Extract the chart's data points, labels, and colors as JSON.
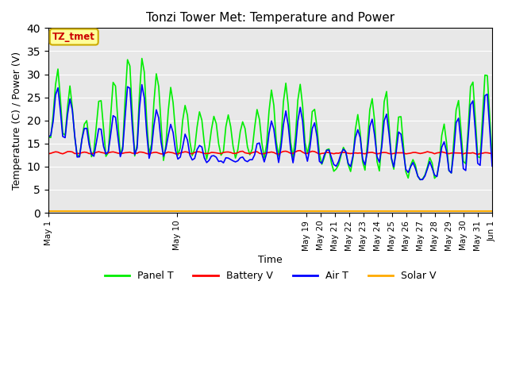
{
  "title": "Tonzi Tower Met: Temperature and Power",
  "xlabel": "Time",
  "ylabel": "Temperature (C) / Power (V)",
  "ylim": [
    0,
    40
  ],
  "yticks": [
    0,
    5,
    10,
    15,
    20,
    25,
    30,
    35,
    40
  ],
  "plot_bg_color": "#e8e8e8",
  "fig_bg_color": "#ffffff",
  "legend_labels": [
    "Panel T",
    "Battery V",
    "Air T",
    "Solar V"
  ],
  "legend_colors": [
    "#00ee00",
    "#ff0000",
    "#0000ff",
    "#ffaa00"
  ],
  "annotation_text": "TZ_tmet",
  "annotation_color": "#cc0000",
  "annotation_bg": "#ffff99",
  "annotation_edge": "#ccaa00",
  "x_tick_positions": [
    1,
    10,
    19,
    20,
    21,
    22,
    23,
    24,
    25,
    26,
    27,
    28,
    29,
    30,
    31,
    32
  ],
  "x_tick_labels": [
    "May 1",
    "May 10",
    "May 19",
    "May 20",
    "May 21",
    "May 22",
    "May 23",
    "May 24",
    "May 25",
    "May 26",
    "May 27",
    "May 28",
    "May 29",
    "May 30",
    "May 31",
    "Jun 1"
  ],
  "xlim": [
    1,
    32
  ],
  "n_days": 31,
  "seed": 12
}
